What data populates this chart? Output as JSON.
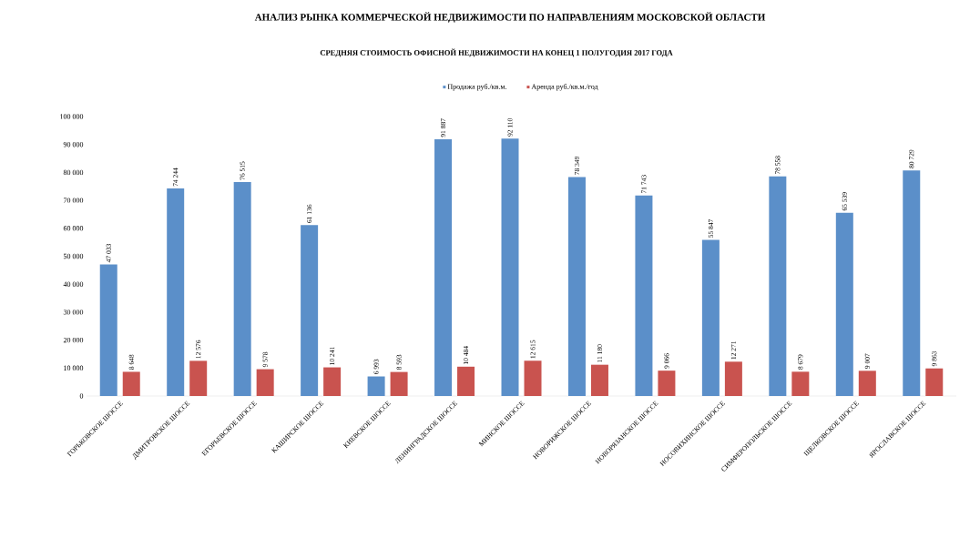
{
  "chart_data": {
    "type": "bar",
    "title": "АНАЛИЗ РЫНКА КОММЕРЧЕСКОЙ НЕДВИЖИМОСТИ ПО НАПРАВЛЕНИЯМ МОСКОВСКОЙ ОБЛАСТИ",
    "subtitle": "СРЕДНЯЯ СТОИМОСТЬ ОФИСНОЙ НЕДВИЖИМОСТИ НА КОНЕЦ 1 ПОЛУГОДИЯ 2017 ГОДА",
    "categories": [
      "ГОРЬКОВСКОЕ ШОССЕ",
      "ДМИТРОВСКОЕ ШОССЕ",
      "ЕГОРЬЕВСКОЕ ШОССЕ",
      "КАШИРСКОЕ ШОССЕ",
      "КИЕВСКОЕ ШОССЕ",
      "ЛЕНИНГРАДСКОЕ ШОССЕ",
      "МИНСКОЕ ШОССЕ",
      "НОВОРИЖСКОЕ ШОССЕ",
      "НОВОРЯЗАНСКОЕ ШОССЕ",
      "НОСОВИХИНСКОЕ ШОССЕ",
      "СИМФЕРОПОЛЬСКОЕ ШОССЕ",
      "ЩЕЛКОВСКОЕ ШОССЕ",
      "ЯРОСЛАВСКОЕ ШОССЕ"
    ],
    "series": [
      {
        "name": "Продажа руб./кв.м.",
        "color": "#5b8fc9",
        "values": [
          47033,
          74244,
          76515,
          61136,
          6993,
          91887,
          92110,
          78349,
          71743,
          55847,
          78558,
          65539,
          80729
        ],
        "value_labels": [
          "47 033",
          "74 244",
          "76 515",
          "61 136",
          "6 993",
          "91 887",
          "92 110",
          "78 349",
          "71 743",
          "55 847",
          "78 558",
          "65 539",
          "80 729"
        ]
      },
      {
        "name": "Аренда руб./кв.м./год",
        "color": "#c9534f",
        "values": [
          8648,
          12576,
          9578,
          10241,
          8593,
          10484,
          12615,
          11180,
          9066,
          12271,
          8679,
          9007,
          9863
        ],
        "value_labels": [
          "8 648",
          "12 576",
          "9 578",
          "10 241",
          "8 593",
          "10 484",
          "12 615",
          "11 180",
          "9 066",
          "12 271",
          "8 679",
          "9 007",
          "9 863"
        ]
      }
    ],
    "ylim": [
      0,
      100000
    ],
    "yticks": [
      0,
      {
        "value": 10000,
        "label": "10 000"
      },
      {
        "value": 20000,
        "label": "20 000"
      },
      {
        "value": 30000,
        "label": "30 000"
      },
      {
        "value": 40000,
        "label": "40 000"
      },
      {
        "value": 50000,
        "label": "50 000"
      },
      {
        "value": 60000,
        "label": "60 000"
      },
      {
        "value": 70000,
        "label": "70 000"
      },
      {
        "value": 80000,
        "label": "80 000"
      },
      {
        "value": 90000,
        "label": "90 000"
      },
      {
        "value": 100000,
        "label": "100 000"
      }
    ],
    "legend": "top",
    "grid": false
  }
}
